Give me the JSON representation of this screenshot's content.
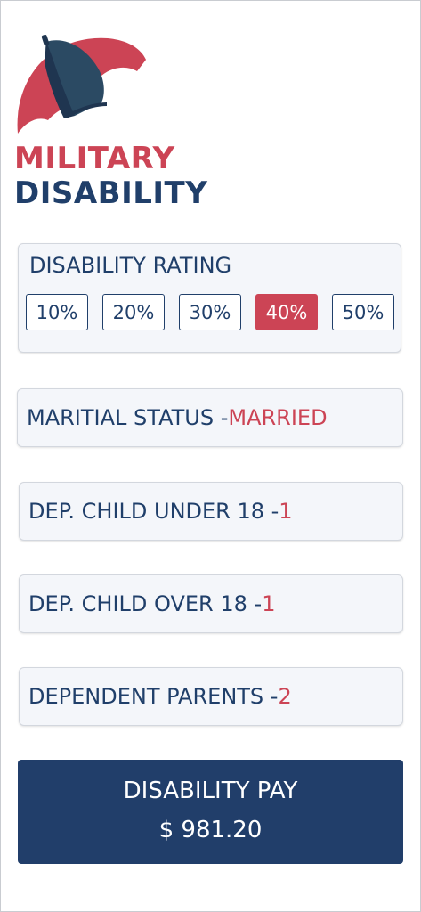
{
  "brand": {
    "line1": "MILITARY",
    "line2": "DISABILITY",
    "colors": {
      "red": "#cc4455",
      "navy": "#203f6a",
      "umbrella_canopy": "#2b4a63"
    }
  },
  "rating": {
    "title": "DISABILITY RATING",
    "options": [
      "10%",
      "20%",
      "30%",
      "40%",
      "50%"
    ],
    "selected": "40%"
  },
  "marital": {
    "label": "MARITIAL STATUS - ",
    "value": "MARRIED"
  },
  "child_under": {
    "label": "DEP. CHILD UNDER 18 - ",
    "value": "1"
  },
  "child_over": {
    "label": "DEP. CHILD OVER 18 - ",
    "value": "1"
  },
  "parents": {
    "label": "DEPENDENT PARENTS - ",
    "value": "2"
  },
  "pay": {
    "title": "DISABILITY PAY",
    "amount": "$ 981.20"
  }
}
